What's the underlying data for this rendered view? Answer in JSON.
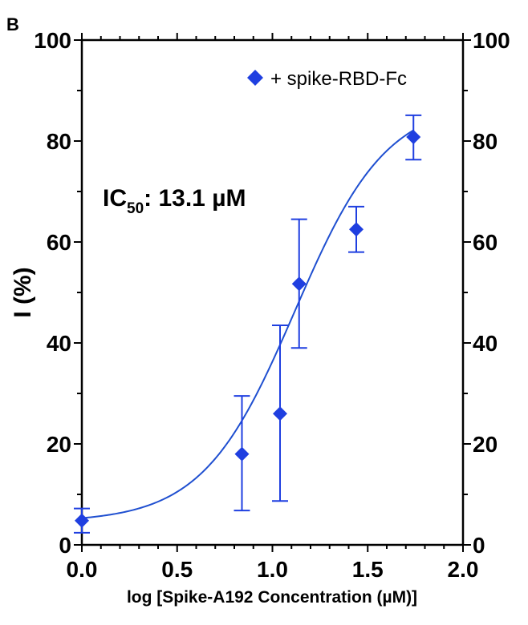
{
  "panel_label": "B",
  "chart_data": {
    "type": "scatter",
    "title": "",
    "xlabel": "log [Spike-A192 Concentration (µM)]",
    "ylabel": "I (%)",
    "xlim": [
      0.0,
      2.0
    ],
    "ylim": [
      0,
      100
    ],
    "x_ticks": [
      0.0,
      0.5,
      1.0,
      1.5,
      2.0
    ],
    "x_tick_labels": [
      "0.0",
      "0.5",
      "1.0",
      "1.5",
      "2.0"
    ],
    "y_ticks": [
      0,
      20,
      40,
      60,
      80,
      100
    ],
    "y_tick_labels": [
      "0",
      "20",
      "40",
      "60",
      "80",
      "100"
    ],
    "right_axis_tick_labels": [
      "0",
      "20",
      "40",
      "60",
      "80",
      "100"
    ],
    "grid": false,
    "legend_position": "top-right",
    "series": [
      {
        "name": "+ spike-RBD-Fc",
        "color": "#1f3fe0",
        "marker": "diamond",
        "x": [
          0.0,
          0.84,
          1.04,
          1.14,
          1.44,
          1.74
        ],
        "y": [
          4.8,
          18.0,
          26.0,
          51.7,
          62.5,
          80.8
        ],
        "y_err_low": [
          2.4,
          6.8,
          8.7,
          39.0,
          58.0,
          76.3
        ],
        "y_err_high": [
          7.2,
          29.5,
          43.5,
          64.5,
          67.0,
          85.1
        ]
      }
    ],
    "fit_curve": {
      "model": "sigmoidal dose-response",
      "color": "#1f4fd0",
      "bottom": 4.5,
      "top": 88.0,
      "log_ic50": 1.117,
      "hill_slope": 1.8
    },
    "annotation": {
      "prefix": "IC",
      "subscript": "50",
      "value": ": 13.1 µM"
    }
  }
}
